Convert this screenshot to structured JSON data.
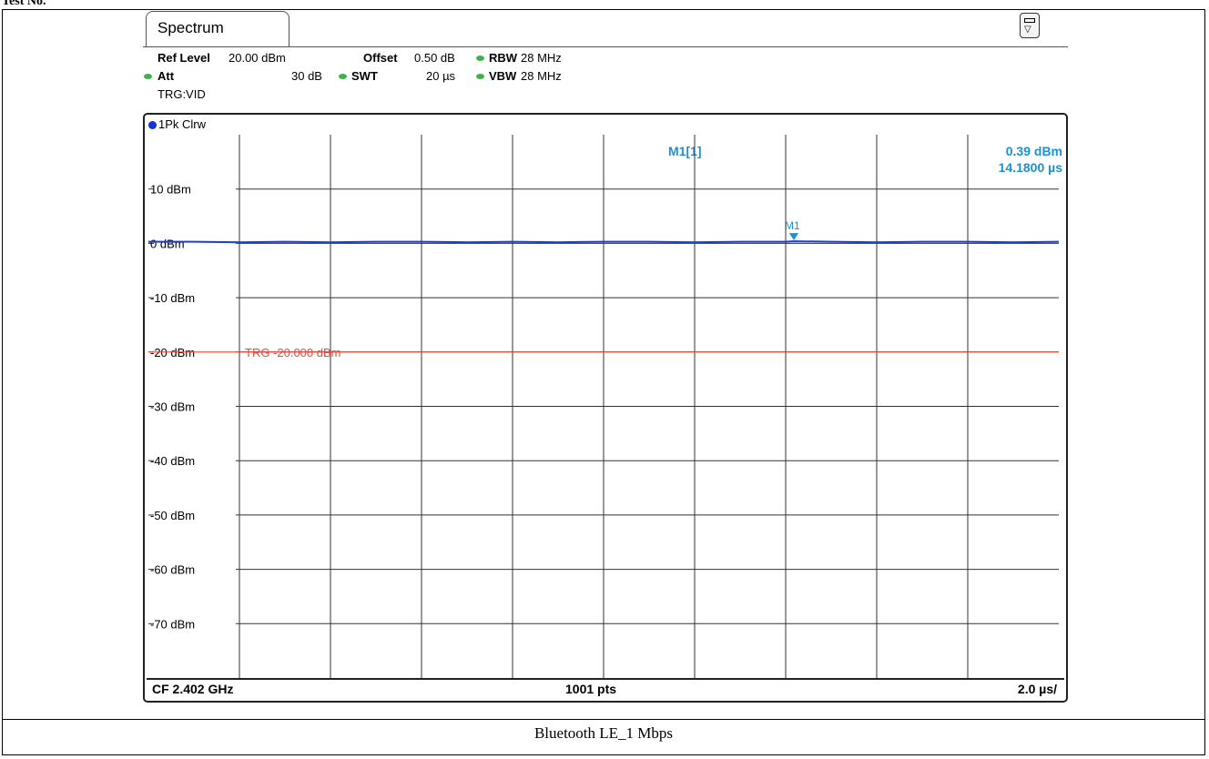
{
  "document": {
    "header_text": "Test No.",
    "caption": "Bluetooth LE_1 Mbps"
  },
  "instrument": {
    "tab_title": "Spectrum",
    "screen_button_icon": "display-layout-icon",
    "settings": {
      "ref_level_label": "Ref Level",
      "ref_level_value": "20.00 dBm",
      "offset_label": "Offset",
      "offset_value": "0.50 dB",
      "rbw_label": "RBW",
      "rbw_value": "28 MHz",
      "att_label": "Att",
      "att_value": "30 dB",
      "swt_label": "SWT",
      "swt_value": "20 µs",
      "vbw_label": "VBW",
      "vbw_value": "28 MHz",
      "trigger": "TRG:VID"
    },
    "trace_label": "1Pk Clrw",
    "marker_readout": {
      "name": "M1[1]",
      "level": "0.39 dBm",
      "time": "14.1800 µs"
    },
    "footer": {
      "center_frequency": "CF 2.402 GHz",
      "points": "1001 pts",
      "time_per_div": "2.0 µs/"
    },
    "colors": {
      "trace": "#1a3fcf",
      "trigger_line": "#e8483c",
      "marker": "#1e8fd0",
      "status_dot": "#3bb34a",
      "grid": "#000000"
    }
  },
  "chart_data": {
    "type": "line",
    "title": "",
    "xlabel": "",
    "ylabel": "",
    "xlim": [
      0,
      20
    ],
    "x_unit": "µs",
    "ylim": [
      -80,
      20
    ],
    "y_unit": "dBm",
    "y_ticks": [
      10,
      0,
      -10,
      -20,
      -30,
      -40,
      -50,
      -60,
      -70
    ],
    "y_tick_labels": [
      "10 dBm",
      "0 dBm",
      "-10 dBm",
      "-20 dBm",
      "-30 dBm",
      "-40 dBm",
      "-50 dBm",
      "-60 dBm",
      "-70 dBm"
    ],
    "grid": true,
    "series": [
      {
        "name": "1Pk Clrw",
        "x": [
          0,
          1,
          2,
          3,
          4,
          5,
          6,
          7,
          8,
          9,
          10,
          11,
          12,
          13,
          14,
          14.18,
          15,
          16,
          17,
          18,
          19,
          20
        ],
        "y": [
          0.3,
          0.3,
          0.2,
          0.3,
          0.2,
          0.3,
          0.3,
          0.2,
          0.3,
          0.2,
          0.3,
          0.3,
          0.2,
          0.3,
          0.3,
          0.39,
          0.3,
          0.2,
          0.3,
          0.3,
          0.2,
          0.3
        ]
      }
    ],
    "trigger_line": {
      "level": -20,
      "label": "TRG -20.000 dBm"
    },
    "markers": [
      {
        "name": "M1",
        "x": 14.18,
        "y": 0.39
      }
    ]
  }
}
